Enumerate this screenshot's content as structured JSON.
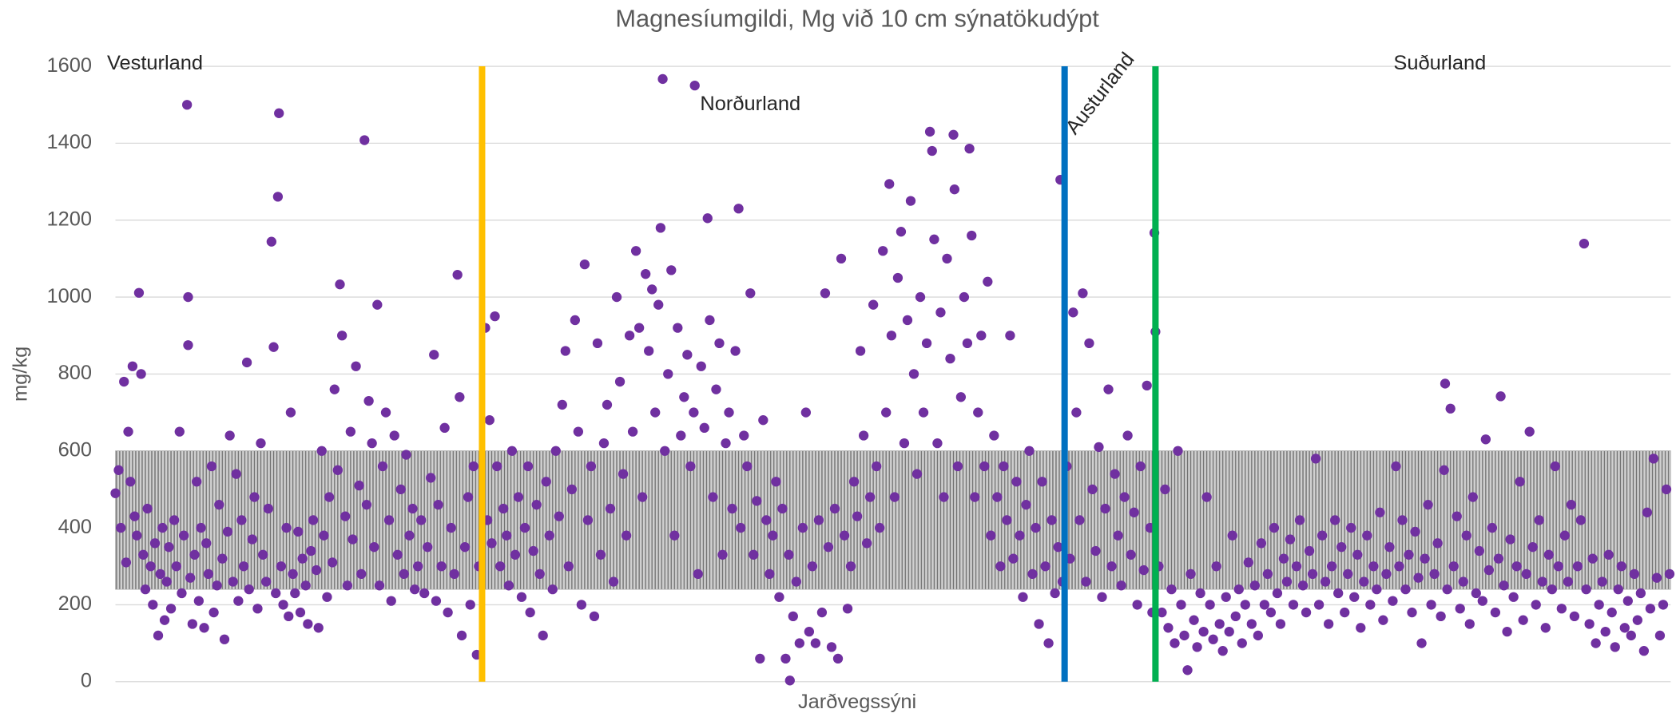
{
  "chart_data": {
    "type": "scatter",
    "title": "Magnesíumgildi, Mg við 10 cm sýnatökudýpt",
    "x_label": "Jarðvegssýni",
    "y_label": "mg/kg",
    "color": "#7030a0",
    "grid": true,
    "xlim": [
      0,
      1455
    ],
    "ylim": [
      0,
      1600
    ],
    "yticks": [
      0,
      200,
      400,
      600,
      800,
      1000,
      1200,
      1400,
      1600
    ],
    "band": {
      "ymin": 240,
      "ymax": 600,
      "color": "#a6a6a6"
    },
    "dividers": [
      {
        "x": 343,
        "color": "#ffc000"
      },
      {
        "x": 888,
        "color": "#0070c0"
      },
      {
        "x": 973,
        "color": "#00b050"
      }
    ],
    "annotations": [
      "Vesturland",
      "Norðurland",
      "Austurland",
      "Suðurland"
    ],
    "x": [
      0,
      3,
      5,
      8,
      10,
      12,
      14,
      16,
      18,
      20,
      22,
      24,
      26,
      28,
      30,
      33,
      35,
      37,
      40,
      42,
      44,
      46,
      48,
      50,
      52,
      55,
      57,
      60,
      62,
      64,
      67,
      68,
      68,
      70,
      72,
      74,
      76,
      78,
      80,
      83,
      85,
      87,
      90,
      92,
      95,
      97,
      100,
      102,
      105,
      107,
      110,
      113,
      115,
      118,
      120,
      123,
      125,
      128,
      130,
      133,
      136,
      138,
      141,
      143,
      146,
      148,
      150,
      152,
      153,
      155,
      157,
      160,
      162,
      164,
      166,
      168,
      171,
      173,
      175,
      178,
      180,
      183,
      185,
      188,
      190,
      193,
      195,
      198,
      200,
      203,
      205,
      208,
      210,
      212,
      215,
      217,
      220,
      222,
      225,
      228,
      230,
      233,
      235,
      237,
      240,
      242,
      245,
      247,
      250,
      253,
      256,
      258,
      261,
      264,
      267,
      270,
      272,
      275,
      278,
      280,
      283,
      286,
      289,
      292,
      295,
      298,
      300,
      302,
      305,
      308,
      311,
      314,
      317,
      320,
      322,
      324,
      327,
      330,
      332,
      335,
      338,
      340,
      346,
      348,
      350,
      352,
      355,
      357,
      360,
      363,
      366,
      368,
      371,
      374,
      377,
      380,
      383,
      386,
      388,
      391,
      394,
      397,
      400,
      403,
      406,
      409,
      412,
      415,
      418,
      421,
      424,
      427,
      430,
      433,
      436,
      439,
      442,
      445,
      448,
      451,
      454,
      457,
      460,
      463,
      466,
      469,
      472,
      475,
      478,
      481,
      484,
      487,
      490,
      493,
      496,
      499,
      502,
      505,
      508,
      510,
      512,
      514,
      517,
      520,
      523,
      526,
      529,
      532,
      535,
      538,
      541,
      542,
      545,
      548,
      551,
      554,
      556,
      559,
      562,
      565,
      568,
      571,
      574,
      577,
      580,
      583,
      585,
      588,
      591,
      594,
      597,
      600,
      603,
      606,
      609,
      612,
      615,
      618,
      621,
      624,
      627,
      630,
      631,
      634,
      637,
      640,
      643,
      646,
      649,
      652,
      655,
      658,
      661,
      664,
      667,
      670,
      673,
      676,
      679,
      682,
      685,
      688,
      691,
      694,
      697,
      700,
      703,
      706,
      709,
      712,
      715,
      718,
      721,
      724,
      726,
      729,
      732,
      735,
      738,
      741,
      744,
      747,
      750,
      753,
      756,
      759,
      762,
      764,
      766,
      769,
      772,
      775,
      778,
      781,
      784,
      785,
      788,
      791,
      794,
      797,
      799,
      801,
      804,
      807,
      810,
      813,
      816,
      819,
      822,
      825,
      828,
      831,
      834,
      837,
      840,
      843,
      846,
      849,
      852,
      855,
      858,
      861,
      864,
      867,
      870,
      873,
      876,
      879,
      882,
      884,
      886,
      890,
      893,
      896,
      899,
      902,
      905,
      908,
      911,
      914,
      917,
      920,
      923,
      926,
      929,
      932,
      935,
      938,
      941,
      944,
      947,
      950,
      953,
      956,
      959,
      962,
      965,
      968,
      970,
      972,
      973,
      976,
      979,
      982,
      985,
      988,
      991,
      994,
      997,
      1000,
      1003,
      1006,
      1009,
      1012,
      1015,
      1018,
      1021,
      1024,
      1027,
      1030,
      1033,
      1036,
      1039,
      1042,
      1045,
      1048,
      1051,
      1054,
      1057,
      1060,
      1063,
      1066,
      1069,
      1072,
      1075,
      1078,
      1081,
      1084,
      1087,
      1090,
      1093,
      1096,
      1099,
      1102,
      1105,
      1108,
      1111,
      1114,
      1117,
      1120,
      1123,
      1126,
      1129,
      1132,
      1135,
      1138,
      1141,
      1144,
      1147,
      1150,
      1153,
      1156,
      1159,
      1162,
      1165,
      1168,
      1171,
      1174,
      1177,
      1180,
      1183,
      1186,
      1189,
      1192,
      1195,
      1198,
      1201,
      1204,
      1207,
      1210,
      1213,
      1216,
      1219,
      1222,
      1225,
      1228,
      1231,
      1234,
      1237,
      1240,
      1243,
      1244,
      1246,
      1249,
      1252,
      1255,
      1258,
      1261,
      1264,
      1267,
      1270,
      1273,
      1276,
      1279,
      1282,
      1285,
      1288,
      1291,
      1294,
      1296,
      1299,
      1302,
      1305,
      1308,
      1311,
      1314,
      1317,
      1320,
      1323,
      1326,
      1329,
      1332,
      1335,
      1338,
      1341,
      1344,
      1347,
      1350,
      1353,
      1356,
      1359,
      1362,
      1365,
      1368,
      1371,
      1374,
      1376,
      1379,
      1382,
      1385,
      1388,
      1391,
      1394,
      1397,
      1400,
      1403,
      1406,
      1409,
      1412,
      1415,
      1418,
      1421,
      1424,
      1427,
      1430,
      1433,
      1436,
      1439,
      1442,
      1445,
      1448,
      1451,
      1454
    ],
    "values": [
      490,
      550,
      400,
      780,
      310,
      650,
      520,
      820,
      430,
      380,
      1011,
      800,
      330,
      240,
      450,
      300,
      200,
      360,
      120,
      280,
      400,
      160,
      260,
      350,
      190,
      420,
      300,
      650,
      230,
      380,
      1500,
      1000,
      875,
      270,
      150,
      330,
      520,
      210,
      400,
      140,
      360,
      280,
      560,
      180,
      250,
      460,
      320,
      110,
      390,
      640,
      260,
      540,
      210,
      420,
      300,
      830,
      240,
      370,
      480,
      190,
      620,
      330,
      260,
      450,
      1144,
      870,
      230,
      1261,
      1478,
      300,
      200,
      400,
      170,
      700,
      280,
      230,
      390,
      180,
      320,
      250,
      150,
      340,
      420,
      290,
      140,
      600,
      380,
      220,
      480,
      310,
      760,
      550,
      1033,
      900,
      430,
      250,
      650,
      370,
      820,
      510,
      280,
      1408,
      460,
      730,
      620,
      350,
      980,
      250,
      560,
      700,
      420,
      210,
      640,
      330,
      500,
      280,
      590,
      380,
      450,
      240,
      300,
      420,
      230,
      350,
      530,
      850,
      210,
      460,
      300,
      660,
      180,
      400,
      280,
      1058,
      740,
      120,
      350,
      480,
      200,
      560,
      70,
      300,
      920,
      420,
      680,
      360,
      950,
      560,
      300,
      450,
      380,
      250,
      600,
      330,
      480,
      220,
      400,
      560,
      180,
      340,
      460,
      280,
      120,
      520,
      380,
      240,
      600,
      430,
      720,
      860,
      300,
      500,
      940,
      650,
      200,
      1085,
      420,
      560,
      170,
      880,
      330,
      620,
      720,
      450,
      260,
      1000,
      780,
      540,
      380,
      900,
      650,
      1120,
      920,
      480,
      1060,
      860,
      1020,
      700,
      980,
      1180,
      1567,
      600,
      800,
      1070,
      380,
      920,
      640,
      740,
      850,
      560,
      700,
      1550,
      280,
      820,
      660,
      1205,
      940,
      480,
      760,
      880,
      330,
      620,
      700,
      450,
      860,
      1230,
      400,
      640,
      560,
      1010,
      330,
      470,
      60,
      680,
      420,
      280,
      380,
      520,
      220,
      450,
      60,
      330,
      3,
      170,
      260,
      100,
      400,
      700,
      130,
      300,
      100,
      420,
      180,
      1010,
      350,
      90,
      450,
      60,
      1100,
      380,
      190,
      300,
      520,
      430,
      860,
      640,
      360,
      480,
      980,
      560,
      400,
      1120,
      700,
      1294,
      900,
      480,
      1050,
      1170,
      620,
      940,
      1250,
      800,
      540,
      1000,
      700,
      880,
      1430,
      1380,
      1150,
      620,
      960,
      480,
      1100,
      840,
      1422,
      1280,
      560,
      740,
      1000,
      880,
      1386,
      1160,
      480,
      700,
      900,
      560,
      1040,
      380,
      640,
      480,
      300,
      560,
      420,
      900,
      320,
      520,
      380,
      220,
      460,
      600,
      280,
      400,
      150,
      520,
      300,
      100,
      420,
      230,
      350,
      1305,
      260,
      560,
      320,
      960,
      700,
      420,
      1010,
      260,
      880,
      500,
      340,
      610,
      220,
      450,
      760,
      300,
      540,
      380,
      250,
      480,
      640,
      330,
      440,
      200,
      560,
      290,
      770,
      400,
      180,
      1167,
      910,
      300,
      180,
      500,
      140,
      240,
      100,
      600,
      200,
      120,
      30,
      280,
      160,
      90,
      230,
      130,
      480,
      200,
      110,
      300,
      150,
      80,
      220,
      130,
      380,
      170,
      240,
      100,
      200,
      310,
      150,
      250,
      120,
      360,
      200,
      280,
      180,
      400,
      230,
      150,
      320,
      260,
      370,
      200,
      300,
      420,
      250,
      180,
      340,
      280,
      580,
      200,
      380,
      260,
      150,
      300,
      420,
      230,
      350,
      180,
      280,
      400,
      220,
      330,
      140,
      260,
      380,
      200,
      300,
      240,
      440,
      160,
      280,
      350,
      210,
      560,
      300,
      420,
      240,
      330,
      180,
      390,
      270,
      100,
      320,
      460,
      200,
      280,
      360,
      170,
      550,
      775,
      240,
      710,
      300,
      430,
      190,
      260,
      380,
      150,
      480,
      230,
      340,
      210,
      630,
      290,
      400,
      180,
      320,
      742,
      250,
      130,
      370,
      220,
      300,
      520,
      160,
      280,
      650,
      350,
      200,
      420,
      260,
      140,
      330,
      240,
      560,
      300,
      190,
      380,
      260,
      460,
      170,
      300,
      420,
      1139,
      240,
      150,
      320,
      100,
      200,
      260,
      130,
      330,
      180,
      90,
      240,
      300,
      140,
      210,
      120,
      280,
      160,
      230,
      80,
      440,
      190,
      580,
      270,
      120,
      200,
      500,
      280
    ]
  }
}
